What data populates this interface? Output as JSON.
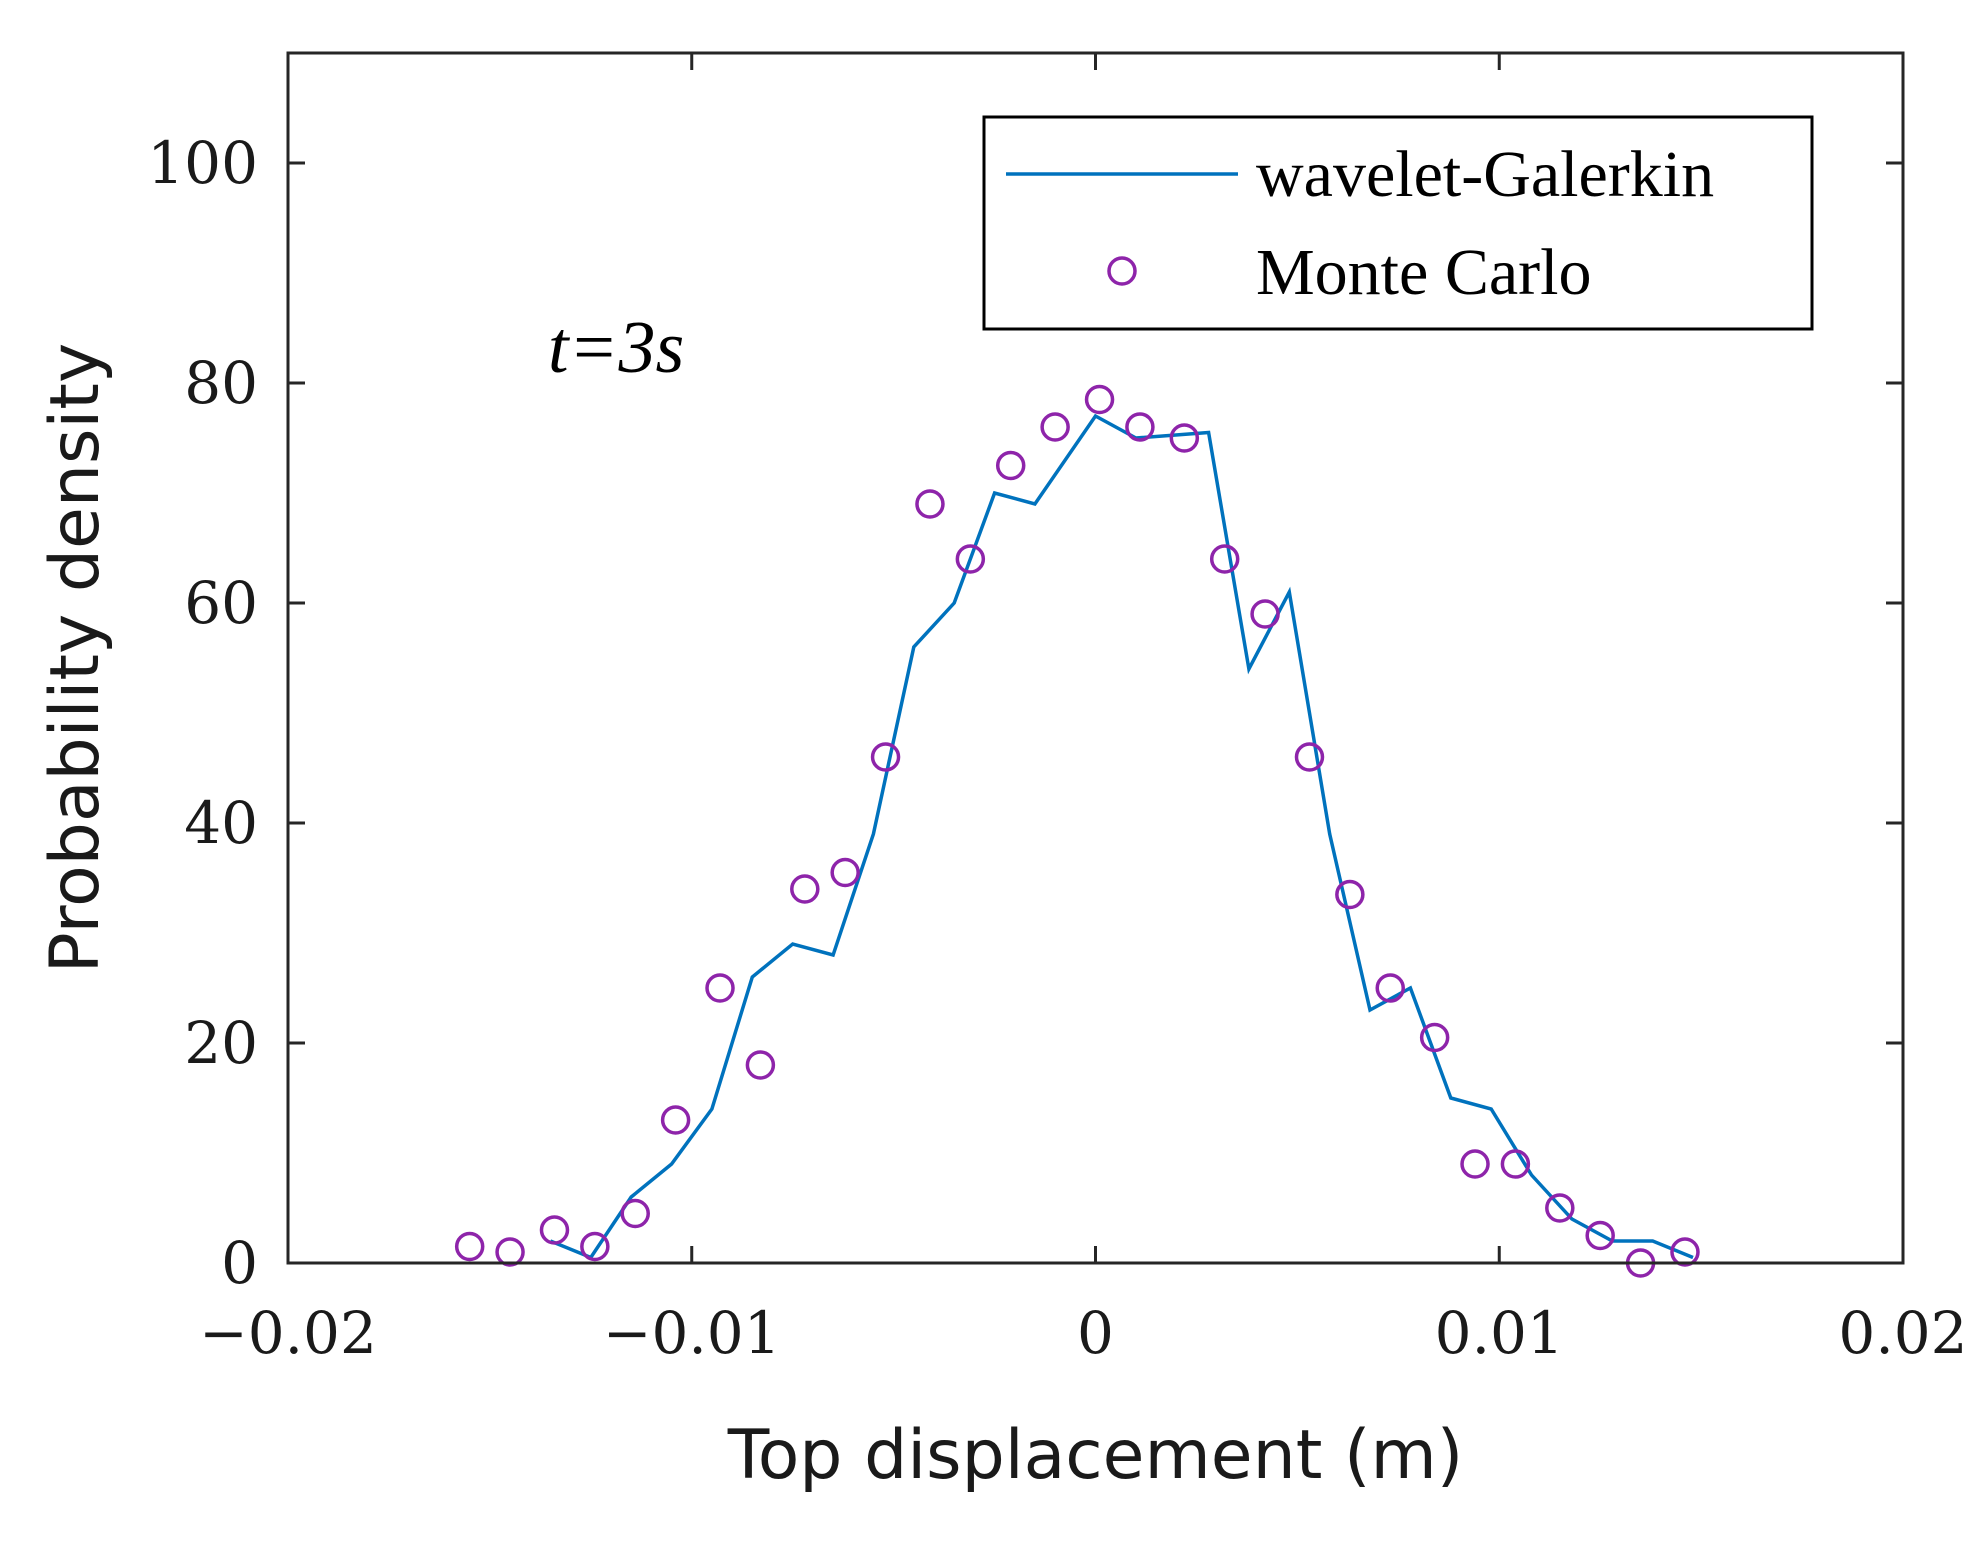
{
  "chart_data": {
    "type": "line",
    "xlabel": "Top displacement (m)",
    "ylabel": "Probability density",
    "xlim": [
      -0.02,
      0.02
    ],
    "ylim": [
      0,
      110
    ],
    "x_ticks": [
      -0.02,
      -0.01,
      0,
      0.01,
      0.02
    ],
    "x_tick_labels": [
      "−0.02",
      "−0.01",
      "0",
      "0.01",
      "0.02"
    ],
    "y_ticks": [
      0,
      20,
      40,
      60,
      80,
      100
    ],
    "y_tick_labels": [
      "0",
      "20",
      "40",
      "60",
      "80",
      "100"
    ],
    "annotation": "t=3s",
    "legend_location": "top-right",
    "grid": false,
    "series": [
      {
        "name": "wavelet-Galerkin",
        "style": "line",
        "color": "#0072BD",
        "x": [
          -0.0135,
          -0.0125,
          -0.0115,
          -0.0105,
          -0.0095,
          -0.0085,
          -0.0075,
          -0.0065,
          -0.0055,
          -0.0045,
          -0.0035,
          -0.0025,
          -0.0015,
          0.0,
          0.001,
          0.0028,
          0.0038,
          0.0048,
          0.0058,
          0.0068,
          0.0078,
          0.0088,
          0.0098,
          0.0108,
          0.0118,
          0.0128,
          0.0138,
          0.0148
        ],
        "y": [
          2,
          0.5,
          6,
          9,
          14,
          26,
          29,
          28,
          39,
          56,
          60,
          70,
          69,
          77,
          75,
          75.5,
          54,
          61,
          39,
          23,
          25,
          15,
          14,
          8,
          4,
          2,
          2,
          0.5
        ]
      },
      {
        "name": "Monte Carlo",
        "style": "marker-circle",
        "color": "#8E24AA",
        "x": [
          -0.0155,
          -0.0145,
          -0.0134,
          -0.0124,
          -0.0114,
          -0.0104,
          -0.0093,
          -0.0083,
          -0.0072,
          -0.0062,
          -0.0052,
          -0.0041,
          -0.0031,
          -0.0021,
          -0.001,
          0.0001,
          0.0011,
          0.0022,
          0.0032,
          0.0042,
          0.0053,
          0.0063,
          0.0073,
          0.0084,
          0.0094,
          0.0104,
          0.0115,
          0.0125,
          0.0135,
          0.0146
        ],
        "y": [
          1.5,
          1,
          3,
          1.5,
          4.5,
          13,
          25,
          18,
          34,
          35.5,
          46,
          69,
          64,
          72.5,
          76,
          78.5,
          76,
          75,
          64,
          59,
          46,
          33.5,
          25,
          20.5,
          9,
          9,
          5,
          2.5,
          0,
          1
        ]
      }
    ]
  }
}
